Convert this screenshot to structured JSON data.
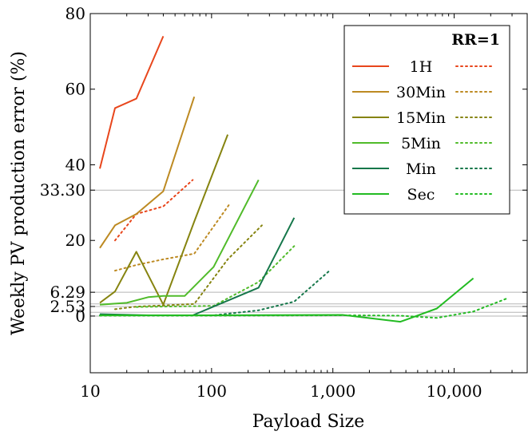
{
  "chart_data": {
    "type": "line",
    "xlabel": "Payload Size",
    "ylabel": "Weekly PV production error (%)",
    "xscale": "log",
    "xlim": [
      10,
      40000
    ],
    "ylim": [
      -15,
      80
    ],
    "x_ticks": [
      {
        "value": 10,
        "label": "10"
      },
      {
        "value": 100,
        "label": "100"
      },
      {
        "value": 1000,
        "label": "1,000"
      },
      {
        "value": 10000,
        "label": "10,000"
      }
    ],
    "y_ticks": [
      {
        "value": 0,
        "label": "0"
      },
      {
        "value": 2.53,
        "label": "2.53"
      },
      {
        "value": 6.29,
        "label": "6.29"
      },
      {
        "value": 20,
        "label": "20"
      },
      {
        "value": 33.3,
        "label": "33.30"
      },
      {
        "value": 40,
        "label": "40"
      },
      {
        "value": 60,
        "label": "60"
      },
      {
        "value": 80,
        "label": "80"
      }
    ],
    "reference_lines": [
      0,
      1,
      2.53,
      3.2,
      6.29,
      33.3
    ],
    "legend": {
      "title": "RR=1",
      "placement": "top-right",
      "entries": [
        {
          "label": "1H",
          "color": "#e8461c"
        },
        {
          "label": "30Min",
          "color": "#bd8a22"
        },
        {
          "label": "15Min",
          "color": "#868410"
        },
        {
          "label": "5Min",
          "color": "#50bb2a"
        },
        {
          "label": "Min",
          "color": "#15774a"
        },
        {
          "label": "Sec",
          "color": "#22bb22"
        }
      ]
    },
    "series": [
      {
        "name": "1H",
        "style": "solid",
        "color": "#e8461c",
        "x": [
          12,
          16,
          24,
          40
        ],
        "y": [
          39,
          55,
          57.5,
          74
        ]
      },
      {
        "name": "1H",
        "style": "dotted",
        "color": "#e8461c",
        "x": [
          16,
          24,
          40,
          70
        ],
        "y": [
          20,
          27,
          29,
          36
        ]
      },
      {
        "name": "30Min",
        "style": "solid",
        "color": "#bd8a22",
        "x": [
          12,
          16,
          24,
          40,
          72
        ],
        "y": [
          18,
          24,
          27,
          33,
          58
        ]
      },
      {
        "name": "30Min",
        "style": "dotted",
        "color": "#bd8a22",
        "x": [
          16,
          24,
          40,
          72,
          140
        ],
        "y": [
          12,
          13.5,
          15,
          16.5,
          29.5
        ]
      },
      {
        "name": "15Min",
        "style": "solid",
        "color": "#868410",
        "x": [
          12,
          16,
          24,
          40,
          72,
          136
        ],
        "y": [
          3.5,
          6.5,
          17,
          3,
          25,
          48
        ]
      },
      {
        "name": "15Min",
        "style": "dotted",
        "color": "#868410",
        "x": [
          16,
          24,
          40,
          72,
          136,
          260
        ],
        "y": [
          1.8,
          2.5,
          2.8,
          3.2,
          15,
          24
        ]
      },
      {
        "name": "5Min",
        "style": "solid",
        "color": "#50bb2a",
        "x": [
          12,
          20,
          30,
          40,
          60,
          104,
          244
        ],
        "y": [
          3,
          3.5,
          5,
          5.3,
          5.3,
          13,
          36
        ]
      },
      {
        "name": "5Min",
        "style": "dotted",
        "color": "#50bb2a",
        "x": [
          24,
          40,
          72,
          104,
          244,
          480
        ],
        "y": [
          2.4,
          2.5,
          2.6,
          2.7,
          9,
          18.5
        ]
      },
      {
        "name": "Min",
        "style": "solid",
        "color": "#15774a",
        "x": [
          12,
          30,
          70,
          104,
          244,
          480
        ],
        "y": [
          0.5,
          0.2,
          0.2,
          2.5,
          7.5,
          26
        ]
      },
      {
        "name": "Min",
        "style": "dotted",
        "color": "#15774a",
        "x": [
          12,
          30,
          70,
          104,
          244,
          480,
          940
        ],
        "y": [
          0.2,
          0.2,
          0.2,
          0.2,
          1.5,
          3.8,
          12
        ]
      },
      {
        "name": "Sec",
        "style": "solid",
        "color": "#22bb22",
        "x": [
          12,
          100,
          1200,
          3600,
          7200,
          14400
        ],
        "y": [
          0.2,
          0.2,
          0.3,
          -1.5,
          2,
          10
        ]
      },
      {
        "name": "Sec",
        "style": "dotted",
        "color": "#22bb22",
        "x": [
          12,
          100,
          1200,
          3600,
          7200,
          14400,
          28000
        ],
        "y": [
          0.1,
          0.1,
          0.2,
          0.1,
          -0.5,
          1.2,
          4.8
        ]
      }
    ]
  }
}
